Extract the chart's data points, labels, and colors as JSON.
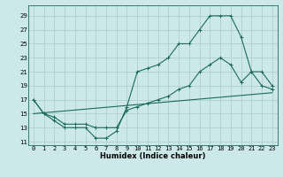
{
  "xlabel": "Humidex (Indice chaleur)",
  "background_color": "#cce8e8",
  "grid_color": "#aacccc",
  "line_color": "#1a6b5c",
  "xlim": [
    -0.5,
    23.5
  ],
  "ylim": [
    10.5,
    30.5
  ],
  "yticks": [
    11,
    13,
    15,
    17,
    19,
    21,
    23,
    25,
    27,
    29
  ],
  "xticks": [
    0,
    1,
    2,
    3,
    4,
    5,
    6,
    7,
    8,
    9,
    10,
    11,
    12,
    13,
    14,
    15,
    16,
    17,
    18,
    19,
    20,
    21,
    22,
    23
  ],
  "line1_x": [
    0,
    1,
    2,
    3,
    4,
    5,
    6,
    7,
    8,
    9,
    10,
    11,
    12,
    13,
    14,
    15,
    16,
    17,
    18,
    19,
    20,
    21,
    22,
    23
  ],
  "line1_y": [
    17,
    15,
    14,
    13,
    13,
    13,
    11.5,
    11.5,
    12.5,
    16,
    21,
    21.5,
    22,
    23,
    25,
    25,
    27,
    29,
    29,
    29,
    26,
    21,
    21,
    19
  ],
  "line2_x": [
    0,
    1,
    2,
    3,
    4,
    5,
    6,
    7,
    8,
    9,
    10,
    11,
    12,
    13,
    14,
    15,
    16,
    17,
    18,
    19,
    20,
    21,
    22,
    23
  ],
  "line2_y": [
    17,
    15,
    14.5,
    13.5,
    13.5,
    13.5,
    13,
    13,
    13,
    15.5,
    16,
    16.5,
    17,
    17.5,
    18.5,
    19,
    21,
    22,
    23,
    22,
    19.5,
    21,
    19,
    18.5
  ],
  "line3_x": [
    0,
    23
  ],
  "line3_y": [
    15,
    18
  ],
  "tick_fontsize": 5,
  "xlabel_fontsize": 6,
  "marker_size": 2.5,
  "linewidth": 0.8
}
